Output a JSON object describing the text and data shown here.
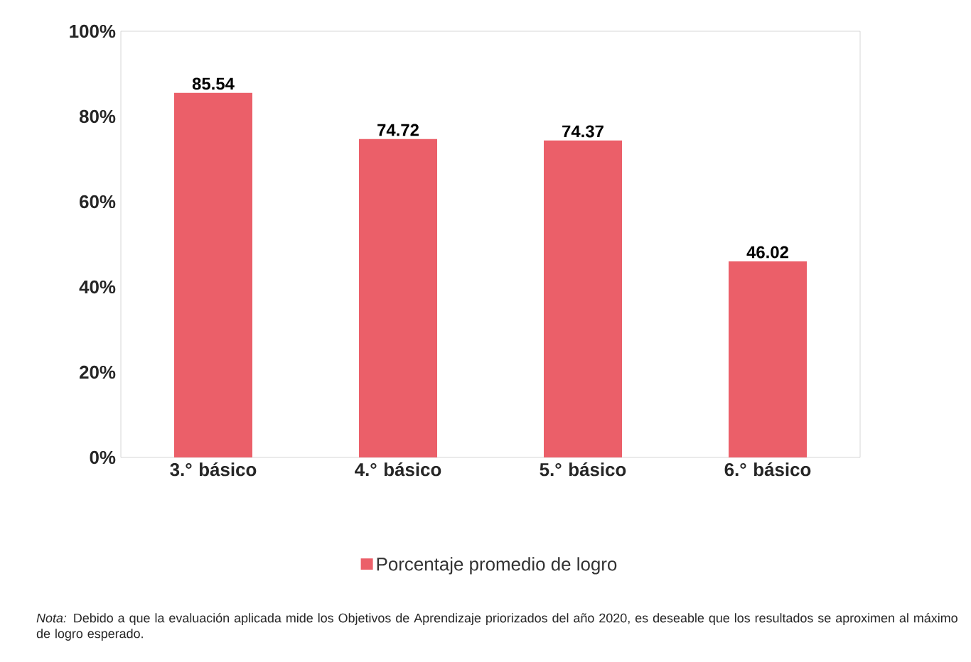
{
  "chart_data": {
    "type": "bar",
    "categories": [
      "3.° básico",
      "4.° básico",
      "5.° básico",
      "6.° básico"
    ],
    "series": [
      {
        "name": "Porcentaje promedio de logro",
        "color": "#eb5f69",
        "values": [
          85.54,
          74.72,
          74.37,
          46.02
        ]
      }
    ],
    "ylim": [
      0,
      100
    ],
    "yticks": [
      {
        "value": 0,
        "label": "0%"
      },
      {
        "value": 20,
        "label": "20%"
      },
      {
        "value": 40,
        "label": "40%"
      },
      {
        "value": 60,
        "label": "60%"
      },
      {
        "value": 80,
        "label": "80%"
      },
      {
        "value": 100,
        "label": "100%"
      }
    ],
    "data_labels": true,
    "legend": "bottom",
    "annotations": [
      "*Nota:* Debido a que la evaluación aplicada mide los Objetivos de Aprendizaje priorizados del año 2020, es deseable que los resultados se aproximen al máximo de logro esperado."
    ]
  }
}
